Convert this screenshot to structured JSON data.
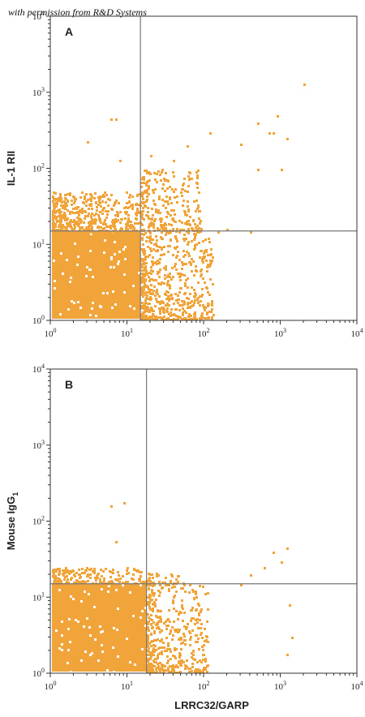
{
  "watermark": "with permission from R&D Systems",
  "colors": {
    "dots": "#f0a43a",
    "frame": "#333333",
    "gate": "#777777"
  },
  "chart_data": [
    {
      "type": "scatter",
      "panel_label": "A",
      "xlabel": "",
      "ylabel": "IL-1 RII",
      "xscale": "log",
      "yscale": "log",
      "xlim": [
        1,
        10000
      ],
      "ylim": [
        1,
        10000
      ],
      "x_tick_labels": [
        {
          "base": "10",
          "exp": "0"
        },
        {
          "base": "10",
          "exp": "1"
        },
        {
          "base": "10",
          "exp": "2"
        },
        {
          "base": "10",
          "exp": "3"
        },
        {
          "base": "10",
          "exp": "4"
        }
      ],
      "y_tick_labels": [
        {
          "base": "10",
          "exp": "0"
        },
        {
          "base": "10",
          "exp": "1"
        },
        {
          "base": "10",
          "exp": "2"
        },
        {
          "base": "10",
          "exp": "3"
        },
        {
          "base": "10",
          "exp": "4"
        }
      ],
      "gate": {
        "x": 15,
        "y": 15
      },
      "clusters": [
        {
          "name": "dense",
          "x_range": [
            1.05,
            15
          ],
          "y_range": [
            1.05,
            15
          ],
          "count": 2600,
          "solid": true
        },
        {
          "name": "upper-left",
          "x_range": [
            1.05,
            15
          ],
          "y_range": [
            15,
            50
          ],
          "count": 500
        },
        {
          "name": "lower-right",
          "x_range": [
            15,
            130
          ],
          "y_range": [
            1.05,
            15
          ],
          "count": 600
        },
        {
          "name": "upper-right",
          "x_range": [
            15,
            90
          ],
          "y_range": [
            15,
            100
          ],
          "count": 260
        }
      ],
      "outliers": [
        [
          6,
          450
        ],
        [
          7,
          450
        ],
        [
          3,
          230
        ],
        [
          8,
          130
        ],
        [
          20,
          150
        ],
        [
          40,
          130
        ],
        [
          60,
          200
        ],
        [
          120,
          300
        ],
        [
          300,
          210
        ],
        [
          500,
          400
        ],
        [
          700,
          300
        ],
        [
          900,
          500
        ],
        [
          1200,
          250
        ],
        [
          2000,
          1300
        ],
        [
          1000,
          100
        ],
        [
          500,
          100
        ],
        [
          800,
          300
        ],
        [
          150,
          15
        ],
        [
          200,
          16
        ],
        [
          400,
          15
        ]
      ]
    },
    {
      "type": "scatter",
      "panel_label": "B",
      "xlabel": "LRRC32/GARP",
      "ylabel": "Mouse IgG",
      "ylabel_sub": "1",
      "xscale": "log",
      "yscale": "log",
      "xlim": [
        1,
        10000
      ],
      "ylim": [
        1,
        10000
      ],
      "x_tick_labels": [
        {
          "base": "10",
          "exp": "0"
        },
        {
          "base": "10",
          "exp": "1"
        },
        {
          "base": "10",
          "exp": "2"
        },
        {
          "base": "10",
          "exp": "3"
        },
        {
          "base": "10",
          "exp": "4"
        }
      ],
      "y_tick_labels": [
        {
          "base": "10",
          "exp": "0"
        },
        {
          "base": "10",
          "exp": "1"
        },
        {
          "base": "10",
          "exp": "2"
        },
        {
          "base": "10",
          "exp": "3"
        },
        {
          "base": "10",
          "exp": "4"
        }
      ],
      "gate": {
        "x": 18,
        "y": 15
      },
      "clusters": [
        {
          "name": "dense",
          "x_range": [
            1.05,
            18
          ],
          "y_range": [
            1.05,
            15
          ],
          "count": 2400,
          "solid": true
        },
        {
          "name": "upper-left",
          "x_range": [
            1.05,
            18
          ],
          "y_range": [
            15,
            25
          ],
          "count": 220
        },
        {
          "name": "lower-right",
          "x_range": [
            18,
            110
          ],
          "y_range": [
            1.05,
            15
          ],
          "count": 450
        },
        {
          "name": "upper-right",
          "x_range": [
            18,
            60
          ],
          "y_range": [
            15,
            22
          ],
          "count": 40
        }
      ],
      "outliers": [
        [
          6,
          160
        ],
        [
          9,
          180
        ],
        [
          7,
          55
        ],
        [
          400,
          20
        ],
        [
          600,
          25
        ],
        [
          800,
          40
        ],
        [
          1000,
          30
        ],
        [
          1200,
          45
        ],
        [
          1300,
          8
        ],
        [
          1400,
          3
        ],
        [
          1200,
          1.8
        ],
        [
          300,
          15
        ]
      ]
    }
  ]
}
